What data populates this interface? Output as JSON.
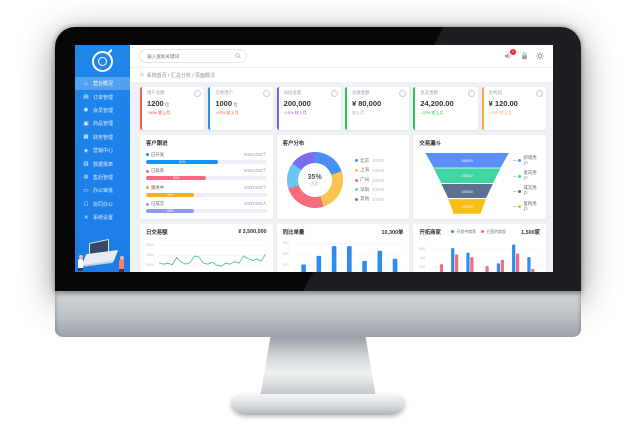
{
  "search": {
    "placeholder": "输入搜索关键词"
  },
  "topbar": {
    "badge": "5",
    "icons": [
      "announce-icon",
      "lock-icon",
      "gear-icon"
    ]
  },
  "breadcrumb": {
    "items": [
      "系统首页",
      "汇总分析",
      "页面概况"
    ],
    "separator": "/"
  },
  "sidebar": {
    "items": [
      {
        "label": "营业概况",
        "icon": "home-icon",
        "glyph": "⌂",
        "active": true
      },
      {
        "label": "订单管理",
        "icon": "order-icon",
        "glyph": "▤",
        "active": false
      },
      {
        "label": "会员管理",
        "icon": "member-icon",
        "glyph": "◉",
        "active": false
      },
      {
        "label": "商品管理",
        "icon": "goods-icon",
        "glyph": "▣",
        "active": false
      },
      {
        "label": "财务管理",
        "icon": "finance-icon",
        "glyph": "▦",
        "active": false
      },
      {
        "label": "营销中心",
        "icon": "marketing-icon",
        "glyph": "◈",
        "active": false
      },
      {
        "label": "数据报表",
        "icon": "report-icon",
        "glyph": "▥",
        "active": false
      },
      {
        "label": "售后管理",
        "icon": "aftersale-icon",
        "glyph": "◍",
        "active": false
      },
      {
        "label": "办公审批",
        "icon": "approve-icon",
        "glyph": "▭",
        "active": false
      },
      {
        "label": "协同办公",
        "icon": "cowork-icon",
        "glyph": "◻",
        "active": false
      },
      {
        "label": "系统设置",
        "icon": "settings-icon",
        "glyph": "✳",
        "active": false
      }
    ]
  },
  "stat_cards": [
    {
      "label": "用户总数",
      "value": "1200",
      "unit": "位",
      "trend": "↑10% 较上月",
      "trend_color": "#f5222d",
      "accent": "#ff5b57"
    },
    {
      "label": "交易用户",
      "value": "1000",
      "unit": "位",
      "trend": "↑10% 较上月",
      "trend_color": "#fa541c",
      "accent": "#2d8cf0"
    },
    {
      "label": "访问总量",
      "value": "200,000",
      "unit": "",
      "trend": "↑15% 较上月",
      "trend_color": "#9254de",
      "accent": "#7a5af8"
    },
    {
      "label": "总收金额",
      "value": "¥ 80,000",
      "unit": "",
      "trend": "较上月",
      "trend_color": "#a0a8b0",
      "accent": "#2fc25b"
    },
    {
      "label": "总支金额",
      "value": "24,200.00",
      "unit": "",
      "trend": "↓22% 较上月",
      "trend_color": "#2fc25b",
      "accent": "#2fc25b"
    },
    {
      "label": "总利润",
      "value": "¥ 120.00",
      "unit": "",
      "trend": "↑10% 较上月",
      "trend_color": "#f6a54a",
      "accent": "#f6a54a"
    }
  ],
  "chart_data": [
    {
      "type": "bar",
      "name": "progress",
      "title": "客户跟进",
      "rows": [
        {
          "label": "已开发",
          "value": "600/1000个",
          "percent": 60,
          "pct_label": "60%",
          "color": "#1890ff"
        },
        {
          "label": "已联系",
          "value": "500/1000个",
          "percent": 50,
          "pct_label": "50%",
          "color": "#f5687f"
        },
        {
          "label": "跟进中",
          "value": "400/1000个",
          "percent": 40,
          "pct_label": "40%",
          "color": "#faad14"
        },
        {
          "label": "已成交",
          "value": "400/1000人",
          "percent": 40,
          "pct_label": "40%",
          "color": "#8a9bf0"
        }
      ]
    },
    {
      "type": "pie",
      "name": "donut",
      "title": "客户分布",
      "center": "35%",
      "center_sub": "占比",
      "slices": [
        {
          "label": "北京",
          "value": "10000",
          "percent": 20,
          "color": "#4a8ff7"
        },
        {
          "label": "上海",
          "value": "10000",
          "percent": 25,
          "color": "#f8c350"
        },
        {
          "label": "广州",
          "value": "10000",
          "percent": 25,
          "color": "#f56c7b"
        },
        {
          "label": "深圳",
          "value": "10000",
          "percent": 15,
          "color": "#6ac6f0"
        },
        {
          "label": "其他",
          "value": "10000",
          "percent": 15,
          "color": "#7b6cf0"
        }
      ]
    },
    {
      "type": "funnel",
      "name": "funnel",
      "title": "交易漏斗",
      "layers": [
        {
          "label": "新增用户",
          "value": "30000",
          "color": "#5b8ff9"
        },
        {
          "label": "意向用户",
          "value": "25000",
          "color": "#3ed6a3"
        },
        {
          "label": "成交用户",
          "value": "20000",
          "color": "#5d7092"
        },
        {
          "label": "复购用户",
          "value": "10000",
          "color": "#f6bd16"
        }
      ],
      "ratios": [
        1,
        0.8,
        0.62,
        0.45,
        0.32
      ]
    },
    {
      "type": "line",
      "name": "daily-trade",
      "title": "日交易额",
      "total": "¥ 3,500,000",
      "color": "#42c97a",
      "ylim": [
        0,
        7000
      ],
      "yticks": [
        6000,
        4000,
        2000
      ],
      "values": [
        2600,
        2300,
        2500,
        2200,
        3600,
        2700,
        2300,
        2600,
        3900,
        3700,
        2500,
        2300,
        2700,
        2100,
        1900,
        2500,
        2300,
        2800,
        2500,
        3900,
        3400,
        3000,
        3300,
        2900,
        4300
      ]
    },
    {
      "type": "bar",
      "name": "order-volume",
      "title": "同比单量",
      "total": "10,300单",
      "color": "#2d8cf0",
      "ylim": [
        0,
        1000
      ],
      "yticks": [
        900,
        600,
        300
      ],
      "values": [
        320,
        560,
        830,
        830,
        420,
        700,
        480
      ]
    },
    {
      "type": "bar",
      "name": "merchants",
      "title": "开拓商家",
      "total": "1,500家",
      "legend": [
        {
          "label": "开发中商家",
          "color": "#2d8cf0"
        },
        {
          "label": "已签约商家",
          "color": "#f06e7e"
        }
      ],
      "ylim": [
        0,
        800
      ],
      "yticks": [
        600,
        400,
        200
      ],
      "groups": [
        [
          90,
          260
        ],
        [
          620,
          480
        ],
        [
          520,
          420
        ],
        [
          70,
          220
        ],
        [
          280,
          360
        ],
        [
          700,
          500
        ],
        [
          420,
          160
        ]
      ]
    }
  ]
}
